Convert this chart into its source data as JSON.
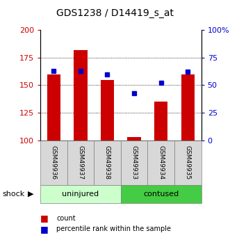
{
  "title": "GDS1238 / D14419_s_at",
  "samples": [
    "GSM49936",
    "GSM49937",
    "GSM49938",
    "GSM49933",
    "GSM49934",
    "GSM49935"
  ],
  "count_values": [
    160,
    182,
    155,
    103,
    135,
    160
  ],
  "percentile_values": [
    63,
    63,
    60,
    43,
    52,
    62
  ],
  "ylim_left": [
    100,
    200
  ],
  "ylim_right": [
    0,
    100
  ],
  "yticks_left": [
    100,
    125,
    150,
    175,
    200
  ],
  "yticks_right": [
    0,
    25,
    50,
    75,
    100
  ],
  "yticklabels_right": [
    "0",
    "25",
    "50",
    "75",
    "100%"
  ],
  "bar_color": "#cc0000",
  "dot_color": "#0000cc",
  "group1_label": "uninjured",
  "group2_label": "contused",
  "group1_color": "#ccffcc",
  "group2_color": "#44cc44",
  "shock_label": "shock",
  "legend_count": "count",
  "legend_percentile": "percentile rank within the sample",
  "bar_width": 0.5,
  "tick_label_color_left": "#cc0000",
  "tick_label_color_right": "#0000cc",
  "sample_box_color": "#d8d8d8",
  "title_fontsize": 10,
  "tick_fontsize": 8,
  "label_fontsize": 8,
  "legend_fontsize": 7
}
